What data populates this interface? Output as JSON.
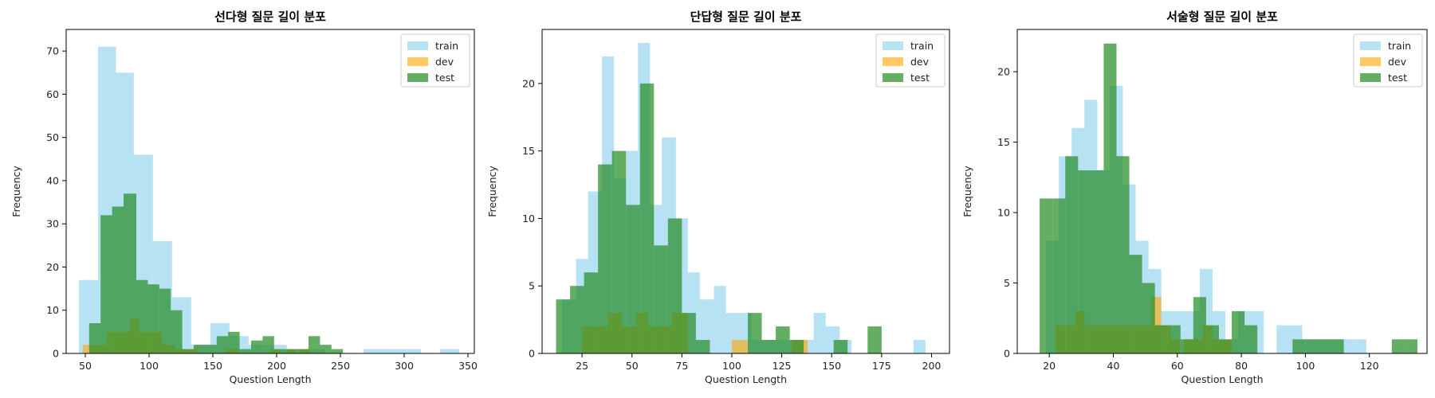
{
  "chart_data": [
    {
      "type": "histogram",
      "title": "선다형 질문 길이 분포",
      "xlabel": "Question Length",
      "ylabel": "Frequency",
      "xlim": [
        35,
        355
      ],
      "ylim": [
        0,
        75
      ],
      "xticks": [
        50,
        100,
        150,
        200,
        250,
        300,
        350
      ],
      "yticks": [
        0,
        10,
        20,
        30,
        40,
        50,
        60,
        70
      ],
      "legend_position": "top-right",
      "series": [
        {
          "name": "train",
          "color": "#87CEEB",
          "opacity": 0.6,
          "bins": [
            [
              45,
              60,
              17
            ],
            [
              60,
              74,
              71
            ],
            [
              74,
              88,
              65
            ],
            [
              88,
              103,
              46
            ],
            [
              103,
              118,
              26
            ],
            [
              118,
              133,
              13
            ],
            [
              133,
              148,
              2
            ],
            [
              148,
              163,
              7
            ],
            [
              163,
              178,
              4
            ],
            [
              178,
              193,
              2
            ],
            [
              193,
              208,
              2
            ],
            [
              208,
              223,
              1
            ],
            [
              223,
              238,
              1
            ],
            [
              268,
              313,
              1
            ],
            [
              328,
              343,
              1
            ]
          ]
        },
        {
          "name": "dev",
          "color": "#FFA500",
          "opacity": 0.6,
          "bins": [
            [
              48,
              58,
              2
            ],
            [
              58,
              67,
              2
            ],
            [
              67,
              75,
              5
            ],
            [
              75,
              85,
              5
            ],
            [
              85,
              92,
              8
            ],
            [
              92,
              100,
              5
            ],
            [
              100,
              110,
              5
            ],
            [
              110,
              120,
              2
            ],
            [
              120,
              130,
              1
            ],
            [
              130,
              138,
              1
            ],
            [
              160,
              170,
              1
            ],
            [
              195,
              203,
              1
            ],
            [
              208,
              215,
              1
            ],
            [
              218,
              226,
              1
            ]
          ]
        },
        {
          "name": "test",
          "color": "#228B22",
          "opacity": 0.7,
          "bins": [
            [
              53,
              62,
              7
            ],
            [
              62,
              71,
              32
            ],
            [
              71,
              80,
              34
            ],
            [
              80,
              90,
              37
            ],
            [
              90,
              99,
              17
            ],
            [
              99,
              108,
              16
            ],
            [
              108,
              117,
              15
            ],
            [
              117,
              126,
              10
            ],
            [
              126,
              135,
              1
            ],
            [
              135,
              144,
              2
            ],
            [
              144,
              153,
              2
            ],
            [
              153,
              162,
              4
            ],
            [
              162,
              171,
              5
            ],
            [
              171,
              180,
              1
            ],
            [
              180,
              189,
              3
            ],
            [
              189,
              198,
              4
            ],
            [
              198,
              207,
              1
            ],
            [
              207,
              216,
              1
            ],
            [
              216,
              225,
              1
            ],
            [
              225,
              234,
              4
            ],
            [
              234,
              243,
              2
            ],
            [
              243,
              252,
              1
            ]
          ]
        }
      ]
    },
    {
      "type": "histogram",
      "title": "단답형 질문 길이 분포",
      "xlabel": "Question Length",
      "ylabel": "Frequency",
      "xlim": [
        5,
        209
      ],
      "ylim": [
        0,
        24
      ],
      "xticks": [
        25,
        50,
        75,
        100,
        125,
        150,
        175,
        200
      ],
      "yticks": [
        0,
        5,
        10,
        15,
        20
      ],
      "legend_position": "top-right",
      "series": [
        {
          "name": "train",
          "color": "#87CEEB",
          "opacity": 0.6,
          "bins": [
            [
              15,
              22,
              4
            ],
            [
              22,
              28,
              7
            ],
            [
              28,
              35,
              12
            ],
            [
              35,
              41,
              22
            ],
            [
              41,
              47,
              13
            ],
            [
              47,
              53,
              15
            ],
            [
              53,
              59,
              23
            ],
            [
              59,
              65,
              11
            ],
            [
              65,
              72,
              16
            ],
            [
              72,
              78,
              10
            ],
            [
              78,
              84,
              6
            ],
            [
              84,
              91,
              4
            ],
            [
              91,
              97,
              5
            ],
            [
              97,
              103,
              3
            ],
            [
              103,
              110,
              3
            ],
            [
              110,
              116,
              1
            ],
            [
              116,
              122,
              1
            ],
            [
              122,
              128,
              1
            ],
            [
              128,
              135,
              1
            ],
            [
              135,
              141,
              1
            ],
            [
              141,
              147,
              3
            ],
            [
              147,
              154,
              2
            ],
            [
              154,
              160,
              1
            ],
            [
              191,
              197,
              1
            ]
          ]
        },
        {
          "name": "dev",
          "color": "#FFA500",
          "opacity": 0.6,
          "bins": [
            [
              25,
              32,
              2
            ],
            [
              32,
              38,
              2
            ],
            [
              38,
              45,
              3
            ],
            [
              45,
              52,
              2
            ],
            [
              52,
              58,
              3
            ],
            [
              58,
              64,
              2
            ],
            [
              64,
              70,
              2
            ],
            [
              70,
              78,
              3
            ],
            [
              100,
              108,
              1
            ],
            [
              130,
              138,
              1
            ]
          ]
        },
        {
          "name": "test",
          "color": "#228B22",
          "opacity": 0.7,
          "bins": [
            [
              12,
              19,
              4
            ],
            [
              19,
              26,
              5
            ],
            [
              26,
              33,
              6
            ],
            [
              33,
              40,
              14
            ],
            [
              40,
              47,
              15
            ],
            [
              47,
              54,
              11
            ],
            [
              54,
              61,
              20
            ],
            [
              61,
              68,
              8
            ],
            [
              68,
              75,
              10
            ],
            [
              75,
              82,
              3
            ],
            [
              82,
              89,
              1
            ],
            [
              108,
              115,
              3
            ],
            [
              115,
              122,
              1
            ],
            [
              122,
              129,
              2
            ],
            [
              129,
              136,
              1
            ],
            [
              151,
              158,
              1
            ],
            [
              168,
              175,
              2
            ]
          ]
        }
      ]
    },
    {
      "type": "histogram",
      "title": "서술형 질문 길이 분포",
      "xlabel": "Question Length",
      "ylabel": "Frequency",
      "xlim": [
        10,
        138
      ],
      "ylim": [
        0,
        23
      ],
      "xticks": [
        20,
        40,
        60,
        80,
        100,
        120
      ],
      "yticks": [
        0,
        5,
        10,
        15,
        20
      ],
      "legend_position": "top-right",
      "series": [
        {
          "name": "train",
          "color": "#87CEEB",
          "opacity": 0.6,
          "bins": [
            [
              19,
              23,
              8
            ],
            [
              23,
              27,
              14
            ],
            [
              27,
              31,
              16
            ],
            [
              31,
              35,
              18
            ],
            [
              35,
              39,
              13
            ],
            [
              39,
              43,
              19
            ],
            [
              43,
              47,
              12
            ],
            [
              47,
              51,
              8
            ],
            [
              51,
              55,
              6
            ],
            [
              55,
              59,
              3
            ],
            [
              59,
              63,
              3
            ],
            [
              63,
              67,
              3
            ],
            [
              67,
              71,
              6
            ],
            [
              71,
              75,
              3
            ],
            [
              75,
              79,
              1
            ],
            [
              79,
              83,
              3
            ],
            [
              83,
              87,
              3
            ],
            [
              91,
              95,
              2
            ],
            [
              95,
              99,
              2
            ],
            [
              99,
              103,
              1
            ],
            [
              103,
              107,
              1
            ],
            [
              107,
              111,
              1
            ],
            [
              111,
              115,
              1
            ],
            [
              115,
              119,
              1
            ]
          ]
        },
        {
          "name": "dev",
          "color": "#FFA500",
          "opacity": 0.6,
          "bins": [
            [
              22,
              25,
              2
            ],
            [
              25,
              28,
              2
            ],
            [
              28,
              31,
              3
            ],
            [
              31,
              34,
              2
            ],
            [
              34,
              37,
              2
            ],
            [
              37,
              40,
              2
            ],
            [
              40,
              43,
              2
            ],
            [
              43,
              46,
              2
            ],
            [
              46,
              49,
              2
            ],
            [
              49,
              52,
              2
            ],
            [
              52,
              55,
              4
            ],
            [
              55,
              58,
              2
            ],
            [
              58,
              61,
              1
            ],
            [
              62,
              65,
              1
            ],
            [
              65,
              68,
              1
            ],
            [
              68,
              71,
              2
            ],
            [
              71,
              74,
              1
            ],
            [
              74,
              77,
              1
            ]
          ]
        },
        {
          "name": "test",
          "color": "#228B22",
          "opacity": 0.7,
          "bins": [
            [
              17,
              21,
              11
            ],
            [
              21,
              25,
              11
            ],
            [
              25,
              29,
              14
            ],
            [
              29,
              33,
              13
            ],
            [
              33,
              37,
              13
            ],
            [
              37,
              41,
              22
            ],
            [
              41,
              45,
              14
            ],
            [
              45,
              49,
              7
            ],
            [
              49,
              53,
              5
            ],
            [
              53,
              57,
              2
            ],
            [
              57,
              61,
              2
            ],
            [
              61,
              65,
              1
            ],
            [
              65,
              69,
              4
            ],
            [
              69,
              73,
              2
            ],
            [
              73,
              77,
              1
            ],
            [
              77,
              81,
              3
            ],
            [
              81,
              85,
              2
            ],
            [
              96,
              100,
              1
            ],
            [
              100,
              104,
              1
            ],
            [
              104,
              108,
              1
            ],
            [
              108,
              112,
              1
            ],
            [
              127,
              131,
              1
            ],
            [
              131,
              135,
              1
            ]
          ]
        }
      ]
    }
  ]
}
